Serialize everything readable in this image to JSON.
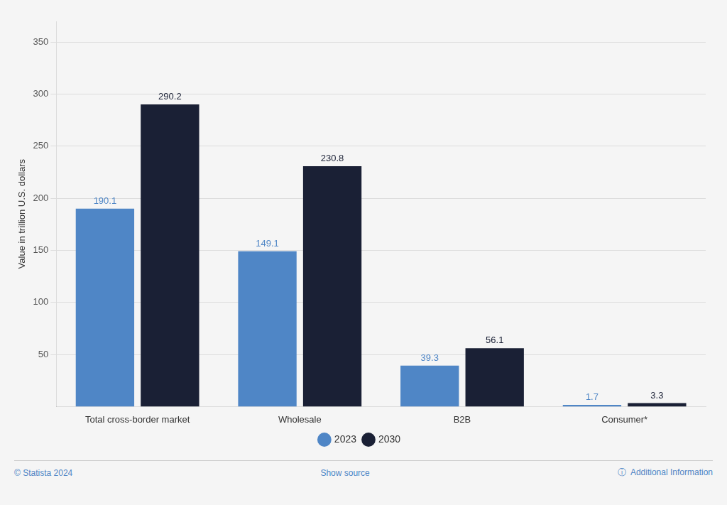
{
  "chart_data": {
    "type": "bar",
    "categories": [
      "Total cross-border market",
      "Wholesale",
      "B2B",
      "Consumer*"
    ],
    "series": [
      {
        "name": "2023",
        "color": "#4f86c6",
        "values": [
          190.1,
          149.1,
          39.3,
          1.7
        ]
      },
      {
        "name": "2030",
        "color": "#1a2035",
        "values": [
          290.2,
          230.8,
          56.1,
          3.3
        ]
      }
    ],
    "ylabel": "Value in trillion U.S. dollars",
    "ylim": [
      0,
      370
    ],
    "yticks": [
      50,
      100,
      150,
      200,
      250,
      300,
      350
    ],
    "grid": true,
    "legend": "bottom",
    "data_labels": true,
    "annotations": [
      "© Statista 2024",
      "Show source",
      "ⓘ  Additional Information"
    ]
  }
}
